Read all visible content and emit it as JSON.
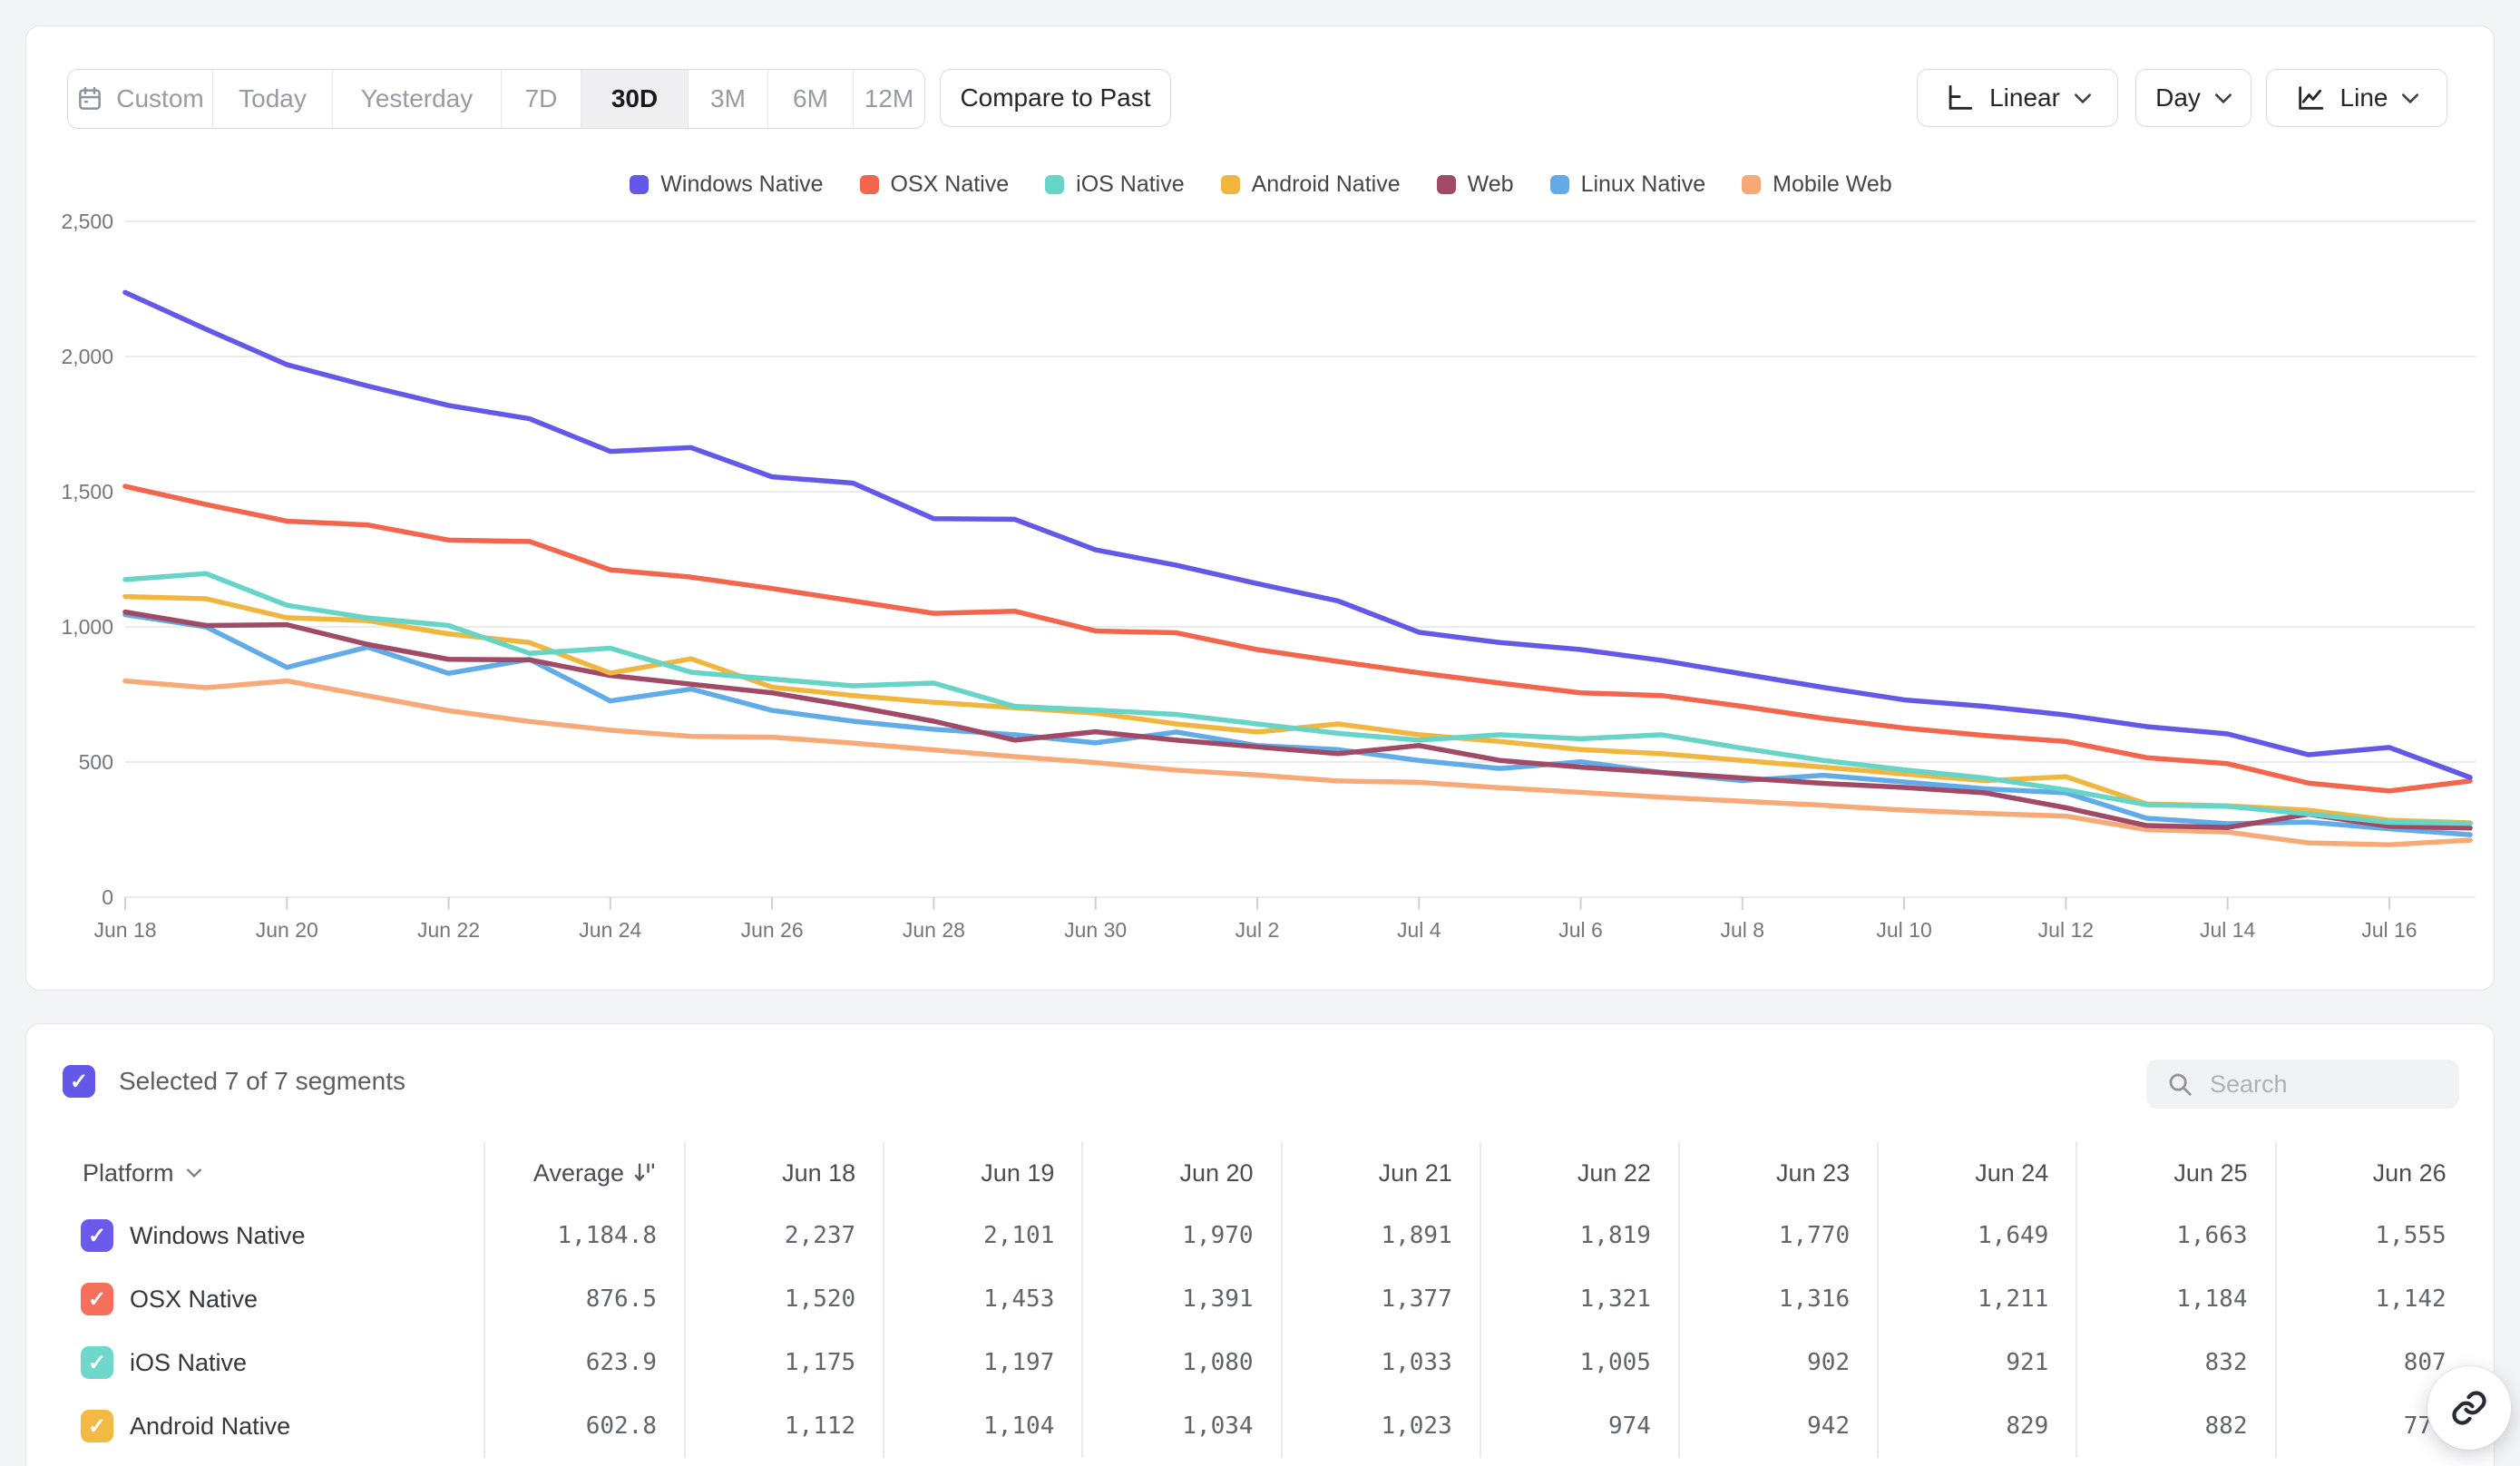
{
  "toolbar": {
    "date_ranges": [
      "Custom",
      "Today",
      "Yesterday",
      "7D",
      "30D",
      "3M",
      "6M",
      "12M"
    ],
    "active_range": "30D",
    "compare_label": "Compare to Past",
    "scale_label": "Linear",
    "interval_label": "Day",
    "chart_type_label": "Line"
  },
  "colors": {
    "accent_purple": "#6458e8",
    "grid_line": "#ebebee",
    "tick": "#cdd0d5",
    "axis_text": "#73767f"
  },
  "chart_data": {
    "type": "line",
    "title": "",
    "xlabel": "",
    "ylabel": "",
    "ylim": [
      0,
      2500
    ],
    "grid": true,
    "legend_position": "top-center",
    "y_ticks": [
      "2,500",
      "2,000",
      "1,500",
      "1,000",
      "500",
      "0"
    ],
    "x_tick_labels": [
      "Jun 18",
      "Jun 20",
      "Jun 22",
      "Jun 24",
      "Jun 26",
      "Jun 28",
      "Jun 30",
      "Jul 2",
      "Jul 4",
      "Jul 6",
      "Jul 8",
      "Jul 10",
      "Jul 12",
      "Jul 14",
      "Jul 16"
    ],
    "x": [
      "Jun 18",
      "Jun 19",
      "Jun 20",
      "Jun 21",
      "Jun 22",
      "Jun 23",
      "Jun 24",
      "Jun 25",
      "Jun 26",
      "Jun 27",
      "Jun 28",
      "Jun 29",
      "Jun 30",
      "Jul 1",
      "Jul 2",
      "Jul 3",
      "Jul 4",
      "Jul 5",
      "Jul 6",
      "Jul 7",
      "Jul 8",
      "Jul 9",
      "Jul 10",
      "Jul 11",
      "Jul 12",
      "Jul 13",
      "Jul 14",
      "Jul 15",
      "Jul 16",
      "Jul 17"
    ],
    "series": [
      {
        "name": "Windows Native",
        "color": "#6458e8",
        "values": [
          2237,
          2101,
          1970,
          1891,
          1819,
          1770,
          1649,
          1663,
          1555,
          1532,
          1400,
          1398,
          1285,
          1228,
          1160,
          1096,
          980,
          942,
          916,
          876,
          826,
          776,
          730,
          706,
          674,
          631,
          604,
          527,
          554,
          443
        ]
      },
      {
        "name": "OSX Native",
        "color": "#f3654c",
        "values": [
          1520,
          1453,
          1391,
          1377,
          1321,
          1316,
          1211,
          1184,
          1142,
          1096,
          1050,
          1058,
          985,
          978,
          916,
          872,
          830,
          792,
          756,
          746,
          706,
          662,
          626,
          598,
          576,
          516,
          494,
          422,
          393,
          430
        ]
      },
      {
        "name": "iOS Native",
        "color": "#66d4c7",
        "values": [
          1175,
          1197,
          1080,
          1033,
          1005,
          902,
          921,
          832,
          807,
          782,
          792,
          706,
          692,
          676,
          641,
          606,
          581,
          601,
          586,
          601,
          551,
          506,
          471,
          441,
          397,
          342,
          336,
          308,
          277,
          273
        ]
      },
      {
        "name": "Android Native",
        "color": "#f0b63f",
        "values": [
          1112,
          1104,
          1034,
          1023,
          974,
          942,
          829,
          882,
          777,
          746,
          721,
          701,
          681,
          641,
          611,
          641,
          601,
          576,
          546,
          531,
          506,
          481,
          456,
          431,
          446,
          345,
          338,
          322,
          285,
          275
        ]
      },
      {
        "name": "Web",
        "color": "#a04a66",
        "values": [
          1055,
          1005,
          1008,
          935,
          880,
          878,
          820,
          788,
          756,
          706,
          651,
          581,
          612,
          581,
          556,
          531,
          561,
          506,
          481,
          461,
          441,
          421,
          406,
          386,
          331,
          265,
          258,
          307,
          262,
          256
        ]
      },
      {
        "name": "Linux Native",
        "color": "#61abe9",
        "values": [
          1045,
          1000,
          850,
          925,
          828,
          880,
          726,
          770,
          691,
          651,
          621,
          601,
          571,
          611,
          561,
          546,
          506,
          476,
          501,
          461,
          431,
          451,
          426,
          401,
          386,
          292,
          272,
          278,
          253,
          231
        ]
      },
      {
        "name": "Mobile Web",
        "color": "#f8a978",
        "values": [
          800,
          775,
          800,
          745,
          690,
          650,
          618,
          595,
          592,
          570,
          545,
          520,
          498,
          470,
          452,
          430,
          425,
          405,
          388,
          370,
          355,
          340,
          322,
          310,
          300,
          250,
          241,
          201,
          194,
          211
        ]
      }
    ]
  },
  "table": {
    "selected_label": "Selected 7 of 7 segments",
    "search_placeholder": "Search",
    "columns": [
      "Platform",
      "Average",
      "Jun 18",
      "Jun 19",
      "Jun 20",
      "Jun 21",
      "Jun 22",
      "Jun 23",
      "Jun 24",
      "Jun 25",
      "Jun 26"
    ],
    "rows": [
      {
        "label": "Windows Native",
        "color": "#6c5bea",
        "checked": true,
        "values": [
          "1,184.8",
          "2,237",
          "2,101",
          "1,970",
          "1,891",
          "1,819",
          "1,770",
          "1,649",
          "1,663",
          "1,555"
        ]
      },
      {
        "label": "OSX Native",
        "color": "#f4705b",
        "checked": true,
        "values": [
          "876.5",
          "1,520",
          "1,453",
          "1,391",
          "1,377",
          "1,321",
          "1,316",
          "1,211",
          "1,184",
          "1,142"
        ]
      },
      {
        "label": "iOS Native",
        "color": "#6fd8cb",
        "checked": true,
        "values": [
          "623.9",
          "1,175",
          "1,197",
          "1,080",
          "1,033",
          "1,005",
          "902",
          "921",
          "832",
          "807"
        ]
      },
      {
        "label": "Android Native",
        "color": "#f2ba45",
        "checked": true,
        "values": [
          "602.8",
          "1,112",
          "1,104",
          "1,034",
          "1,023",
          "974",
          "942",
          "829",
          "882",
          "777"
        ]
      }
    ]
  }
}
